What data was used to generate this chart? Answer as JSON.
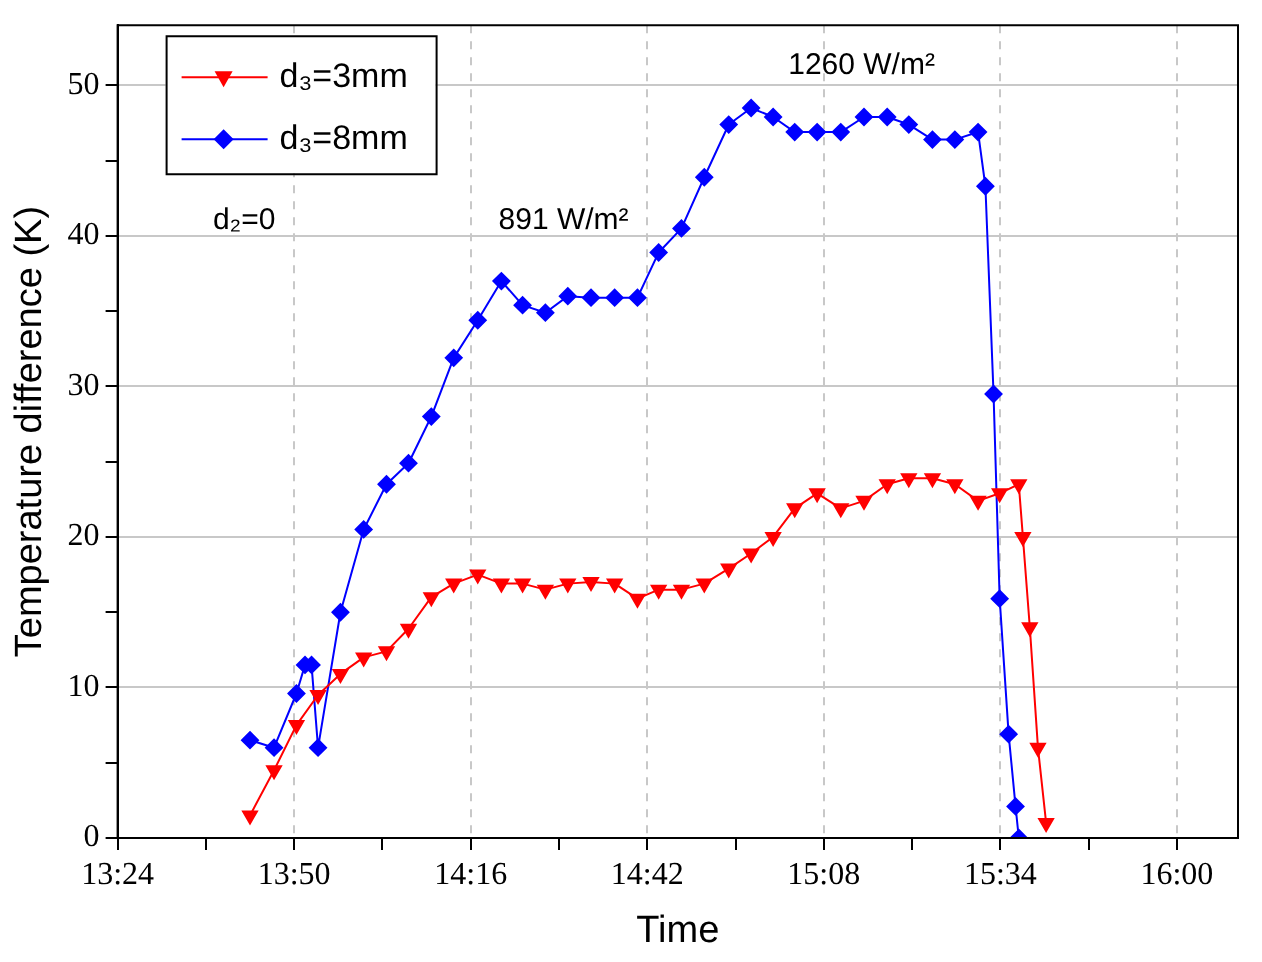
{
  "chart_data": {
    "type": "line",
    "xlabel": "Time",
    "ylabel": "Temperature difference (K)",
    "xlim": [
      13.4,
      16.15
    ],
    "ylim": [
      0,
      54
    ],
    "xticks": [
      {
        "value": 13.4,
        "label": "13:24"
      },
      {
        "value": 13.6167,
        "label": null
      },
      {
        "value": 13.8333,
        "label": "13:50"
      },
      {
        "value": 14.05,
        "label": null
      },
      {
        "value": 14.2667,
        "label": "14:16"
      },
      {
        "value": 14.4833,
        "label": null
      },
      {
        "value": 14.7,
        "label": "14:42"
      },
      {
        "value": 14.9167,
        "label": null
      },
      {
        "value": 15.1333,
        "label": "15:08"
      },
      {
        "value": 15.35,
        "label": null
      },
      {
        "value": 15.5667,
        "label": "15:34"
      },
      {
        "value": 15.7833,
        "label": null
      },
      {
        "value": 16.0,
        "label": "16:00"
      }
    ],
    "yticks": [
      0,
      {
        "value": 5,
        "label": null
      },
      10,
      {
        "value": 15,
        "label": null
      },
      20,
      {
        "value": 25,
        "label": null
      },
      30,
      {
        "value": 35,
        "label": null
      },
      40,
      {
        "value": 45,
        "label": null
      },
      50
    ],
    "grid": true,
    "legend": "top left",
    "line_style": "solid",
    "annotations": [
      "d₂=0",
      "891 W/m²",
      "1260 W/m²"
    ],
    "series": [
      {
        "name": "d₃=3mm",
        "color": "#ff0000",
        "marker": "triangle",
        "x": [
          13.725,
          13.784,
          13.839,
          13.892,
          13.947,
          14.004,
          14.06,
          14.114,
          14.17,
          14.225,
          14.284,
          14.342,
          14.394,
          14.45,
          14.505,
          14.562,
          14.62,
          14.676,
          14.728,
          14.784,
          14.84,
          14.9,
          14.955,
          15.009,
          15.062,
          15.117,
          15.175,
          15.232,
          15.289,
          15.342,
          15.4,
          15.455,
          15.512,
          15.565,
          15.612,
          15.622,
          15.639,
          15.659,
          15.679
        ],
        "values": [
          1.5,
          4.5,
          7.5,
          9.5,
          10.9,
          12,
          12.4,
          13.9,
          16,
          16.9,
          17.5,
          16.9,
          16.9,
          16.5,
          16.9,
          17,
          16.9,
          15.9,
          16.5,
          16.5,
          16.9,
          17.9,
          18.9,
          20,
          21.9,
          22.9,
          21.9,
          22.4,
          23.5,
          23.9,
          23.9,
          23.5,
          22.4,
          22.9,
          23.5,
          20,
          14,
          6,
          1
        ]
      },
      {
        "name": "d₃=8mm",
        "color": "#0000ff",
        "marker": "diamond",
        "x": [
          13.725,
          13.784,
          13.839,
          13.86,
          13.876,
          13.892,
          13.947,
          14.004,
          14.06,
          14.114,
          14.17,
          14.225,
          14.284,
          14.342,
          14.394,
          14.45,
          14.505,
          14.562,
          14.62,
          14.676,
          14.728,
          14.784,
          14.84,
          14.9,
          14.955,
          15.009,
          15.062,
          15.117,
          15.175,
          15.232,
          15.289,
          15.342,
          15.4,
          15.455,
          15.512,
          15.53,
          15.55,
          15.565,
          15.587,
          15.604,
          15.612
        ],
        "values": [
          6.5,
          6,
          9.6,
          11.5,
          11.5,
          6,
          15,
          20.5,
          23.5,
          24.9,
          28,
          31.9,
          34.4,
          37,
          35.4,
          34.9,
          36,
          35.9,
          35.9,
          35.9,
          38.9,
          40.5,
          43.9,
          47.4,
          48.5,
          47.9,
          46.9,
          46.9,
          46.9,
          47.9,
          47.9,
          47.4,
          46.4,
          46.4,
          46.9,
          43.3,
          29.5,
          15.9,
          6.9,
          2.1,
          0
        ]
      }
    ]
  }
}
